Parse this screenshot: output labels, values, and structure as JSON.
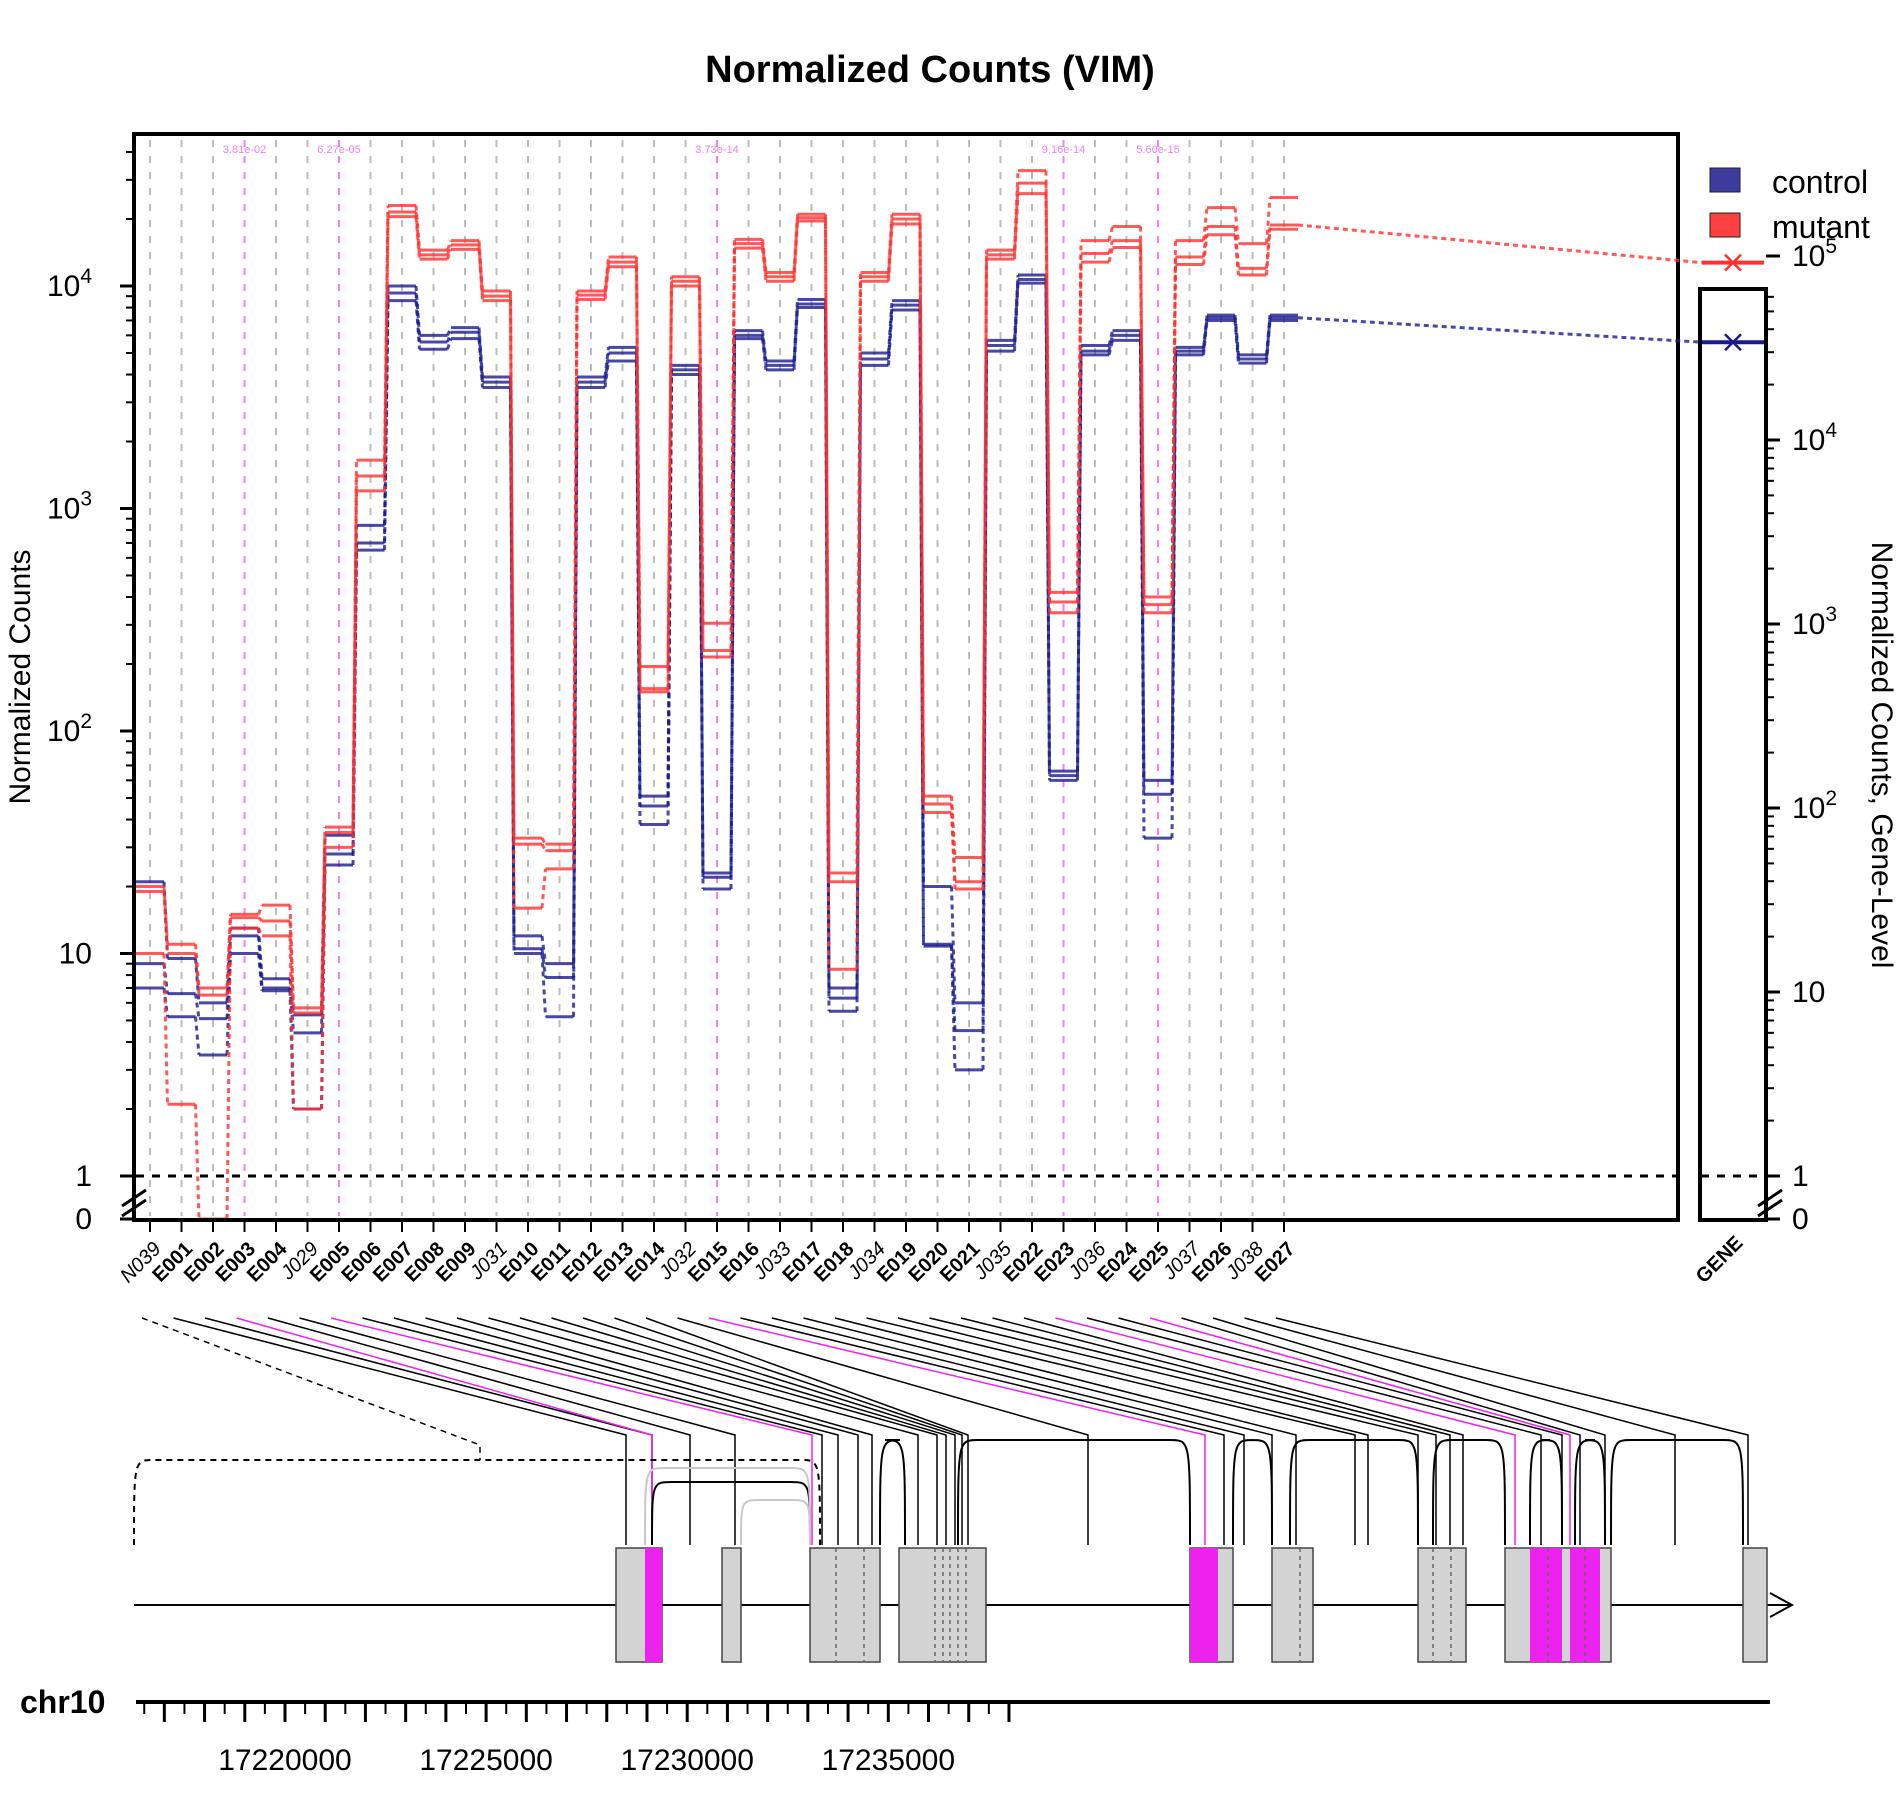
{
  "chart_data": {
    "type": "line",
    "title": "Normalized Counts (VIM)",
    "ylabel": "Normalized Counts",
    "ylabel_right": "Normalized Counts, Gene-Level",
    "yscale": "log",
    "y_ticks_left": [
      "0",
      "1",
      "10",
      "10^2",
      "10^3",
      "10^4"
    ],
    "y_ticks_right": [
      "0",
      "1",
      "10",
      "10^2",
      "10^3",
      "10^4",
      "10^5"
    ],
    "threshold_line": 1,
    "legend": [
      {
        "name": "control",
        "color": "#3c3c9e"
      },
      {
        "name": "mutant",
        "color": "#ff4040"
      }
    ],
    "features": [
      {
        "id": "N039",
        "type": "novel-junction",
        "control": [
          21,
          9,
          7
        ],
        "mutant": [
          20,
          19,
          10
        ],
        "sig": false,
        "pval": ""
      },
      {
        "id": "E001",
        "type": "exon",
        "control": [
          9.5,
          6.6,
          5.2
        ],
        "mutant": [
          11,
          10,
          2.1
        ],
        "sig": false,
        "pval": ""
      },
      {
        "id": "E002",
        "type": "exon",
        "control": [
          6,
          5.1,
          3.5
        ],
        "mutant": [
          7,
          6.5,
          0
        ],
        "sig": false,
        "pval": ""
      },
      {
        "id": "E003",
        "type": "exon",
        "control": [
          13,
          12,
          10
        ],
        "mutant": [
          15,
          14.5,
          13
        ],
        "sig": true,
        "pval": "3.81e-02"
      },
      {
        "id": "E004",
        "type": "exon",
        "control": [
          7.7,
          7,
          6.8
        ],
        "mutant": [
          16.5,
          14,
          12
        ],
        "sig": false,
        "pval": ""
      },
      {
        "id": "J029",
        "type": "junction",
        "control": [
          5.3,
          4.4,
          2
        ],
        "mutant": [
          5.7,
          5.4,
          2
        ],
        "sig": false,
        "pval": ""
      },
      {
        "id": "E005",
        "type": "exon",
        "control": [
          34,
          28,
          25
        ],
        "mutant": [
          37,
          35,
          30
        ],
        "sig": true,
        "pval": "6.27e-05"
      },
      {
        "id": "E006",
        "type": "exon",
        "control": [
          840,
          700,
          650
        ],
        "mutant": [
          1650,
          1400,
          1200
        ],
        "sig": false,
        "pval": ""
      },
      {
        "id": "E007",
        "type": "exon",
        "control": [
          10000,
          9300,
          8600
        ],
        "mutant": [
          23000,
          21500,
          20500
        ],
        "sig": false,
        "pval": ""
      },
      {
        "id": "E008",
        "type": "exon",
        "control": [
          6000,
          5600,
          5200
        ],
        "mutant": [
          14500,
          13800,
          13200
        ],
        "sig": false,
        "pval": ""
      },
      {
        "id": "E009",
        "type": "exon",
        "control": [
          6500,
          6200,
          5800
        ],
        "mutant": [
          16000,
          15300,
          14600
        ],
        "sig": false,
        "pval": ""
      },
      {
        "id": "J031",
        "type": "junction",
        "control": [
          3900,
          3700,
          3500
        ],
        "mutant": [
          9500,
          9000,
          8600
        ],
        "sig": false,
        "pval": ""
      },
      {
        "id": "E010",
        "type": "exon",
        "control": [
          12,
          10.5,
          10
        ],
        "mutant": [
          33,
          31,
          16
        ],
        "sig": false,
        "pval": ""
      },
      {
        "id": "E011",
        "type": "exon",
        "control": [
          9,
          7.8,
          5.2
        ],
        "mutant": [
          31,
          29,
          24
        ],
        "sig": false,
        "pval": ""
      },
      {
        "id": "E012",
        "type": "exon",
        "control": [
          3900,
          3700,
          3500
        ],
        "mutant": [
          9500,
          9100,
          8700
        ],
        "sig": false,
        "pval": ""
      },
      {
        "id": "E013",
        "type": "exon",
        "control": [
          5300,
          5000,
          4600
        ],
        "mutant": [
          13500,
          12800,
          12200
        ],
        "sig": false,
        "pval": ""
      },
      {
        "id": "E014",
        "type": "exon",
        "control": [
          51,
          46,
          38
        ],
        "mutant": [
          195,
          155,
          150
        ],
        "sig": false,
        "pval": ""
      },
      {
        "id": "J032",
        "type": "junction",
        "control": [
          4400,
          4200,
          4000
        ],
        "mutant": [
          11000,
          10500,
          10000
        ],
        "sig": false,
        "pval": ""
      },
      {
        "id": "E015",
        "type": "exon",
        "control": [
          23,
          22,
          19.5
        ],
        "mutant": [
          305,
          230,
          215
        ],
        "sig": true,
        "pval": "3.73e-14"
      },
      {
        "id": "E016",
        "type": "exon",
        "control": [
          6300,
          6000,
          5800
        ],
        "mutant": [
          16200,
          15500,
          14800
        ],
        "sig": false,
        "pval": ""
      },
      {
        "id": "J033",
        "type": "junction",
        "control": [
          4600,
          4400,
          4200
        ],
        "mutant": [
          11500,
          11000,
          10500
        ],
        "sig": false,
        "pval": ""
      },
      {
        "id": "E017",
        "type": "exon",
        "control": [
          8700,
          8300,
          8000
        ],
        "mutant": [
          21000,
          20300,
          19600
        ],
        "sig": false,
        "pval": ""
      },
      {
        "id": "E018",
        "type": "exon",
        "control": [
          7,
          6.3,
          5.5
        ],
        "mutant": [
          23,
          21,
          8.5
        ],
        "sig": false,
        "pval": ""
      },
      {
        "id": "J034",
        "type": "junction",
        "control": [
          5000,
          4700,
          4400
        ],
        "mutant": [
          11500,
          11000,
          10500
        ],
        "sig": false,
        "pval": ""
      },
      {
        "id": "E019",
        "type": "exon",
        "control": [
          8600,
          8200,
          7800
        ],
        "mutant": [
          21000,
          20000,
          19000
        ],
        "sig": false,
        "pval": ""
      },
      {
        "id": "E020",
        "type": "exon",
        "control": [
          20,
          11,
          10.8
        ],
        "mutant": [
          51,
          47,
          43
        ],
        "sig": false,
        "pval": ""
      },
      {
        "id": "E021",
        "type": "exon",
        "control": [
          6,
          4.5,
          3
        ],
        "mutant": [
          27,
          21,
          19.5
        ],
        "sig": false,
        "pval": ""
      },
      {
        "id": "J035",
        "type": "junction",
        "control": [
          5700,
          5400,
          5100
        ],
        "mutant": [
          14500,
          13800,
          13200
        ],
        "sig": false,
        "pval": ""
      },
      {
        "id": "E022",
        "type": "exon",
        "control": [
          11200,
          10700,
          10300
        ],
        "mutant": [
          33000,
          29000,
          26000
        ],
        "sig": false,
        "pval": ""
      },
      {
        "id": "E023",
        "type": "exon",
        "control": [
          66,
          63,
          60
        ],
        "mutant": [
          420,
          380,
          340
        ],
        "sig": true,
        "pval": "9.16e-14"
      },
      {
        "id": "J036",
        "type": "junction",
        "control": [
          5400,
          5100,
          4900
        ],
        "mutant": [
          16000,
          14000,
          12800
        ],
        "sig": false,
        "pval": ""
      },
      {
        "id": "E024",
        "type": "exon",
        "control": [
          6300,
          6000,
          5700
        ],
        "mutant": [
          18500,
          16000,
          14900
        ],
        "sig": false,
        "pval": ""
      },
      {
        "id": "E025",
        "type": "exon",
        "control": [
          60,
          52,
          33
        ],
        "mutant": [
          400,
          370,
          340
        ],
        "sig": true,
        "pval": "5.60e-15"
      },
      {
        "id": "J037",
        "type": "junction",
        "control": [
          5300,
          5100,
          4900
        ],
        "mutant": [
          16000,
          13500,
          12500
        ],
        "sig": false,
        "pval": ""
      },
      {
        "id": "E026",
        "type": "exon",
        "control": [
          7400,
          7200,
          7000
        ],
        "mutant": [
          22500,
          18500,
          17000
        ],
        "sig": false,
        "pval": ""
      },
      {
        "id": "J038",
        "type": "junction",
        "control": [
          4900,
          4700,
          4500
        ],
        "mutant": [
          15500,
          12000,
          11200
        ],
        "sig": false,
        "pval": ""
      },
      {
        "id": "E027",
        "type": "exon",
        "control": [
          7400,
          7200,
          7000
        ],
        "mutant": [
          25000,
          18800,
          18000
        ],
        "sig": false,
        "pval": ""
      }
    ],
    "gene_label": "GENE",
    "gene_level": {
      "control": 34000,
      "mutant": 92000
    },
    "chromosome": "chr10",
    "genomic_ticks": [
      "17220000",
      "17225000",
      "17230000",
      "17235000"
    ]
  }
}
